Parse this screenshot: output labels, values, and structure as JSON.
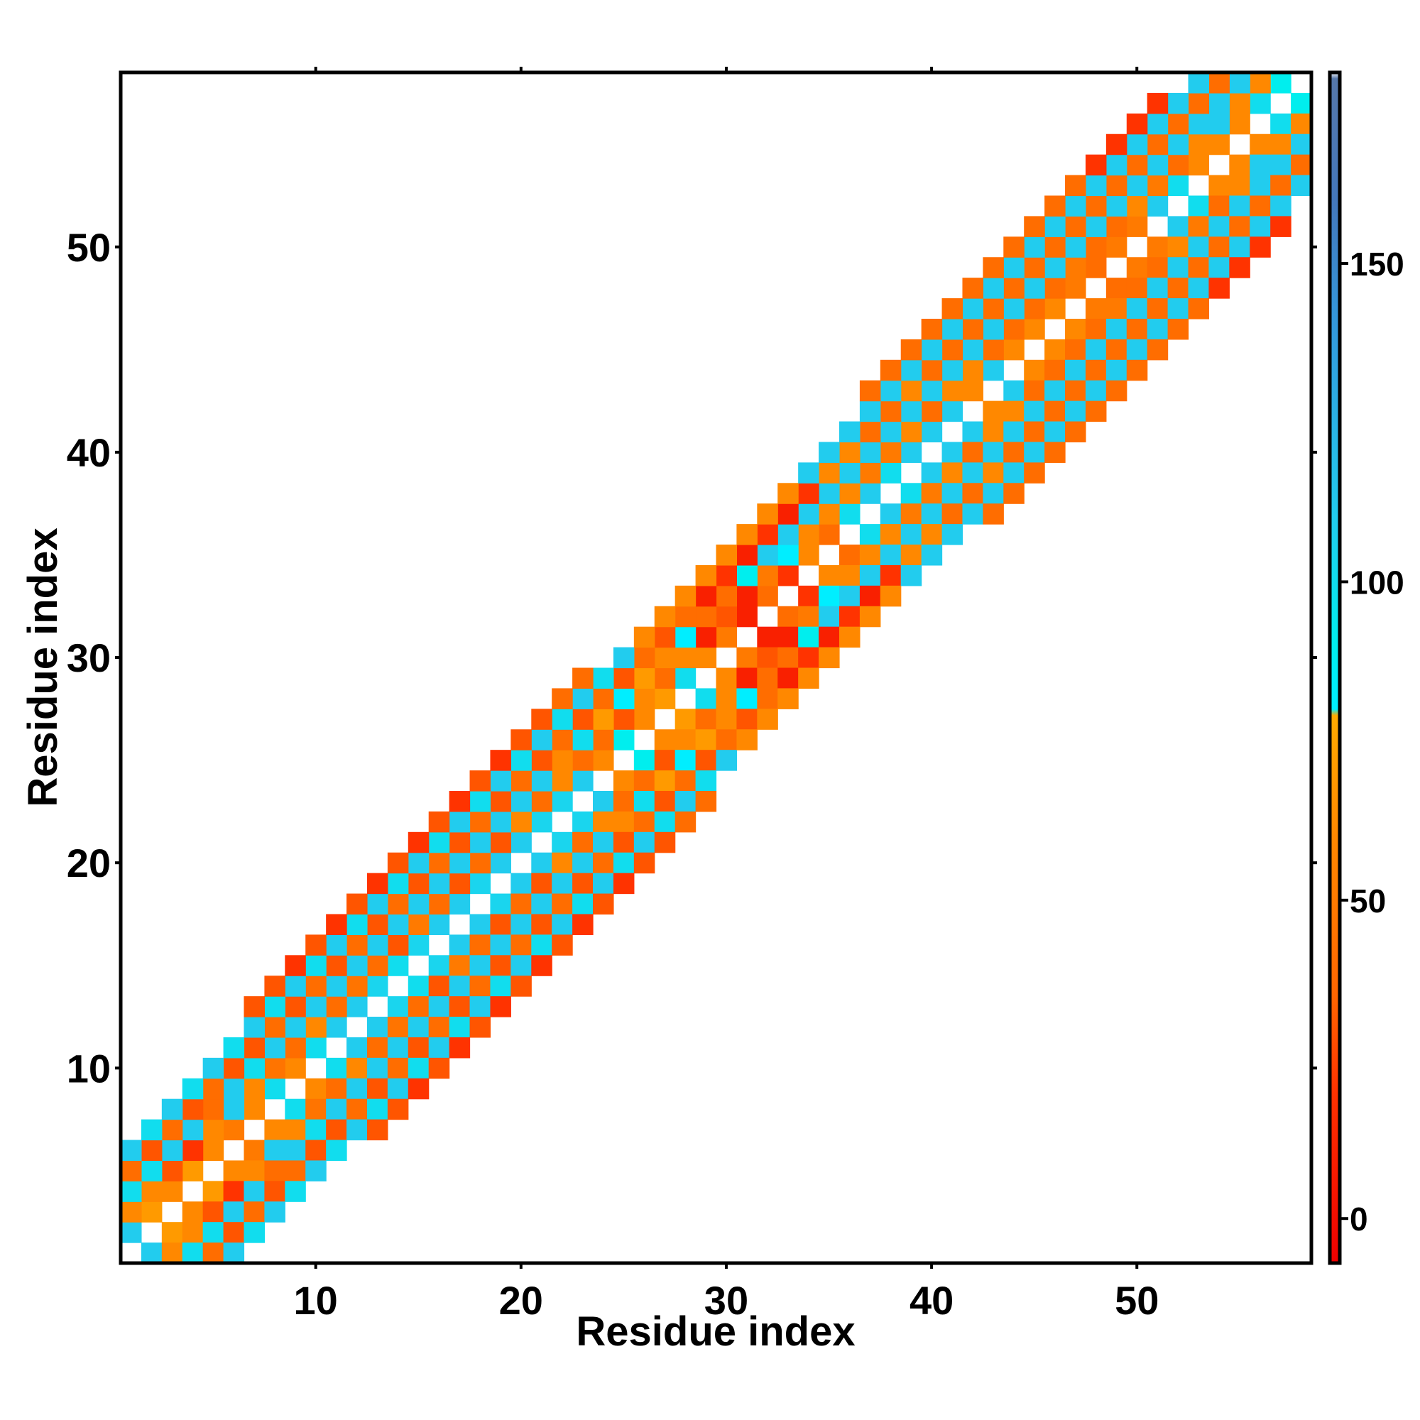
{
  "chart_data": {
    "type": "heatmap",
    "title": "",
    "xlabel": "Residue index",
    "ylabel": "Residue index",
    "xlim": [
      0.5,
      58.5
    ],
    "ylim": [
      0.5,
      58.5
    ],
    "x_ticks": [
      10,
      20,
      30,
      40,
      50
    ],
    "y_ticks": [
      10,
      20,
      30,
      40,
      50
    ],
    "grid": false,
    "n_residues": 58,
    "diagonal_empty": true,
    "cell_value_note": "",
    "bands": [
      {
        "offset": 1,
        "values": [
          110,
          70,
          60,
          70,
          60,
          50,
          60,
          100,
          60,
          100,
          110,
          110,
          105,
          100,
          105,
          110,
          110,
          105,
          110,
          110,
          105,
          105,
          110,
          60,
          90,
          60,
          70,
          100,
          60,
          50,
          10,
          40,
          20,
          60,
          40,
          100,
          110,
          100,
          110,
          110,
          110,
          60,
          110,
          60,
          60,
          60,
          50,
          40,
          50,
          50,
          110,
          100,
          60,
          60,
          60,
          100,
          90
        ]
      },
      {
        "offset": 2,
        "values": [
          60,
          60,
          30,
          20,
          60,
          110,
          60,
          45,
          40,
          60,
          40,
          45,
          40,
          30,
          50,
          40,
          30,
          40,
          30,
          60,
          40,
          60,
          40,
          40,
          30,
          60,
          40,
          60,
          10,
          30,
          10,
          50,
          80,
          60,
          60,
          60,
          50,
          50,
          60,
          40,
          60,
          60,
          40,
          40,
          40,
          40,
          50,
          40,
          40,
          60,
          50,
          40,
          60,
          110,
          60,
          60
        ]
      },
      {
        "offset": 3,
        "values": [
          100,
          100,
          110,
          110,
          40,
          110,
          100,
          110,
          110,
          110,
          110,
          110,
          110,
          110,
          110,
          110,
          110,
          110,
          110,
          110,
          110,
          60,
          100,
          70,
          80,
          70,
          60,
          80,
          40,
          40,
          90,
          110,
          110,
          110,
          110,
          110,
          110,
          110,
          110,
          110,
          110,
          110,
          110,
          110,
          110,
          110,
          110,
          110,
          110,
          110,
          110,
          110,
          110,
          110,
          110
        ]
      },
      {
        "offset": 4,
        "values": [
          40,
          30,
          40,
          30,
          40,
          30,
          30,
          40,
          30,
          40,
          30,
          40,
          30,
          40,
          30,
          40,
          30,
          40,
          30,
          40,
          30,
          40,
          30,
          40,
          30,
          40,
          30,
          40,
          10,
          20,
          10,
          20,
          10,
          20,
          60,
          60,
          40,
          40,
          60,
          40,
          40,
          40,
          40,
          40,
          40,
          40,
          40,
          40,
          40,
          40,
          40,
          40,
          40,
          40
        ]
      },
      {
        "offset": 5,
        "values": [
          110,
          100,
          110,
          100,
          110,
          100,
          110,
          100,
          110,
          100,
          110,
          100,
          110,
          100,
          110,
          100,
          110,
          100,
          110,
          100,
          110,
          100,
          110,
          100,
          110,
          60,
          60,
          60,
          60,
          60,
          60,
          60,
          60,
          110,
          110,
          110,
          110,
          110,
          110,
          110,
          110,
          110,
          110,
          110,
          110,
          110,
          110,
          110,
          110,
          110,
          110,
          110,
          110
        ]
      },
      {
        "offset": 6,
        "values": [
          null,
          null,
          null,
          null,
          null,
          null,
          30,
          30,
          20,
          30,
          20,
          30,
          20,
          30,
          20,
          30,
          20,
          30,
          20,
          30,
          30,
          40,
          40,
          null,
          null,
          null,
          null,
          null,
          null,
          null,
          null,
          null,
          null,
          null,
          null,
          null,
          40,
          40,
          40,
          40,
          40,
          40,
          40,
          40,
          40,
          40,
          40,
          20,
          20,
          20,
          20,
          null
        ]
      }
    ],
    "colorbar": {
      "ticks": [
        0,
        50,
        100,
        150
      ],
      "range": [
        -7,
        180
      ],
      "stops": [
        {
          "value": -7,
          "color": "#ee0000"
        },
        {
          "value": 20,
          "color": "#ff3300"
        },
        {
          "value": 35,
          "color": "#ff6600"
        },
        {
          "value": 60,
          "color": "#ff8800"
        },
        {
          "value": 79,
          "color": "#ffaa00"
        },
        {
          "value": 80,
          "color": "#00eeff"
        },
        {
          "value": 90,
          "color": "#00eeee"
        },
        {
          "value": 110,
          "color": "#22ccee"
        },
        {
          "value": 140,
          "color": "#3399dd"
        },
        {
          "value": 160,
          "color": "#4477bb"
        },
        {
          "value": 179,
          "color": "#5577aa"
        },
        {
          "value": 180,
          "color": "#ffffff"
        }
      ]
    }
  }
}
